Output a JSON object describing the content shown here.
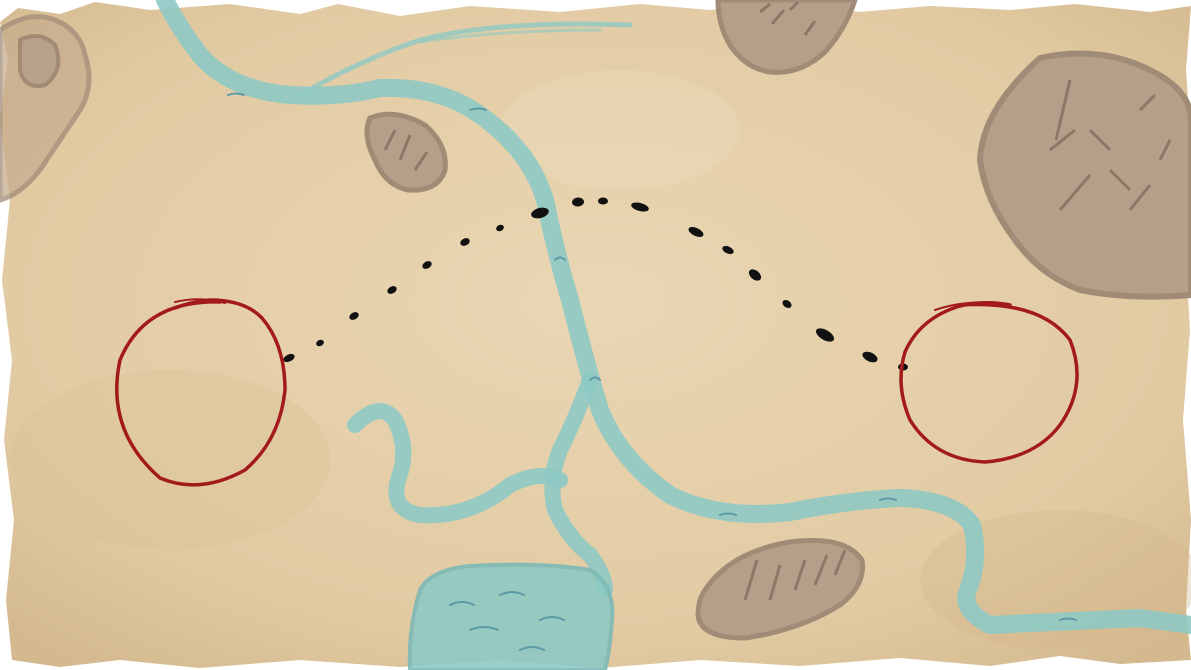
{
  "map": {
    "style": "parchment-sketch",
    "colors": {
      "parchment": "#e5cfaa",
      "parchment_dark": "#cfb58c",
      "river": "#8ec9c4",
      "river_dark": "#6aa8b3",
      "land": "#b59f8b",
      "land_outline": "#a08b77",
      "route": "#111111",
      "marker": "#a31a1a"
    },
    "features": {
      "rivers": [
        "main-river",
        "west-tributary",
        "east-branch",
        "north-branch",
        "lake"
      ],
      "landmasses": [
        "northwest-land",
        "north-center-land",
        "northeast-land",
        "small-island",
        "south-island"
      ],
      "route": {
        "style": "dotted",
        "from": "start-marker",
        "to": "end-marker"
      },
      "markers": [
        "start-marker",
        "end-marker"
      ]
    }
  }
}
